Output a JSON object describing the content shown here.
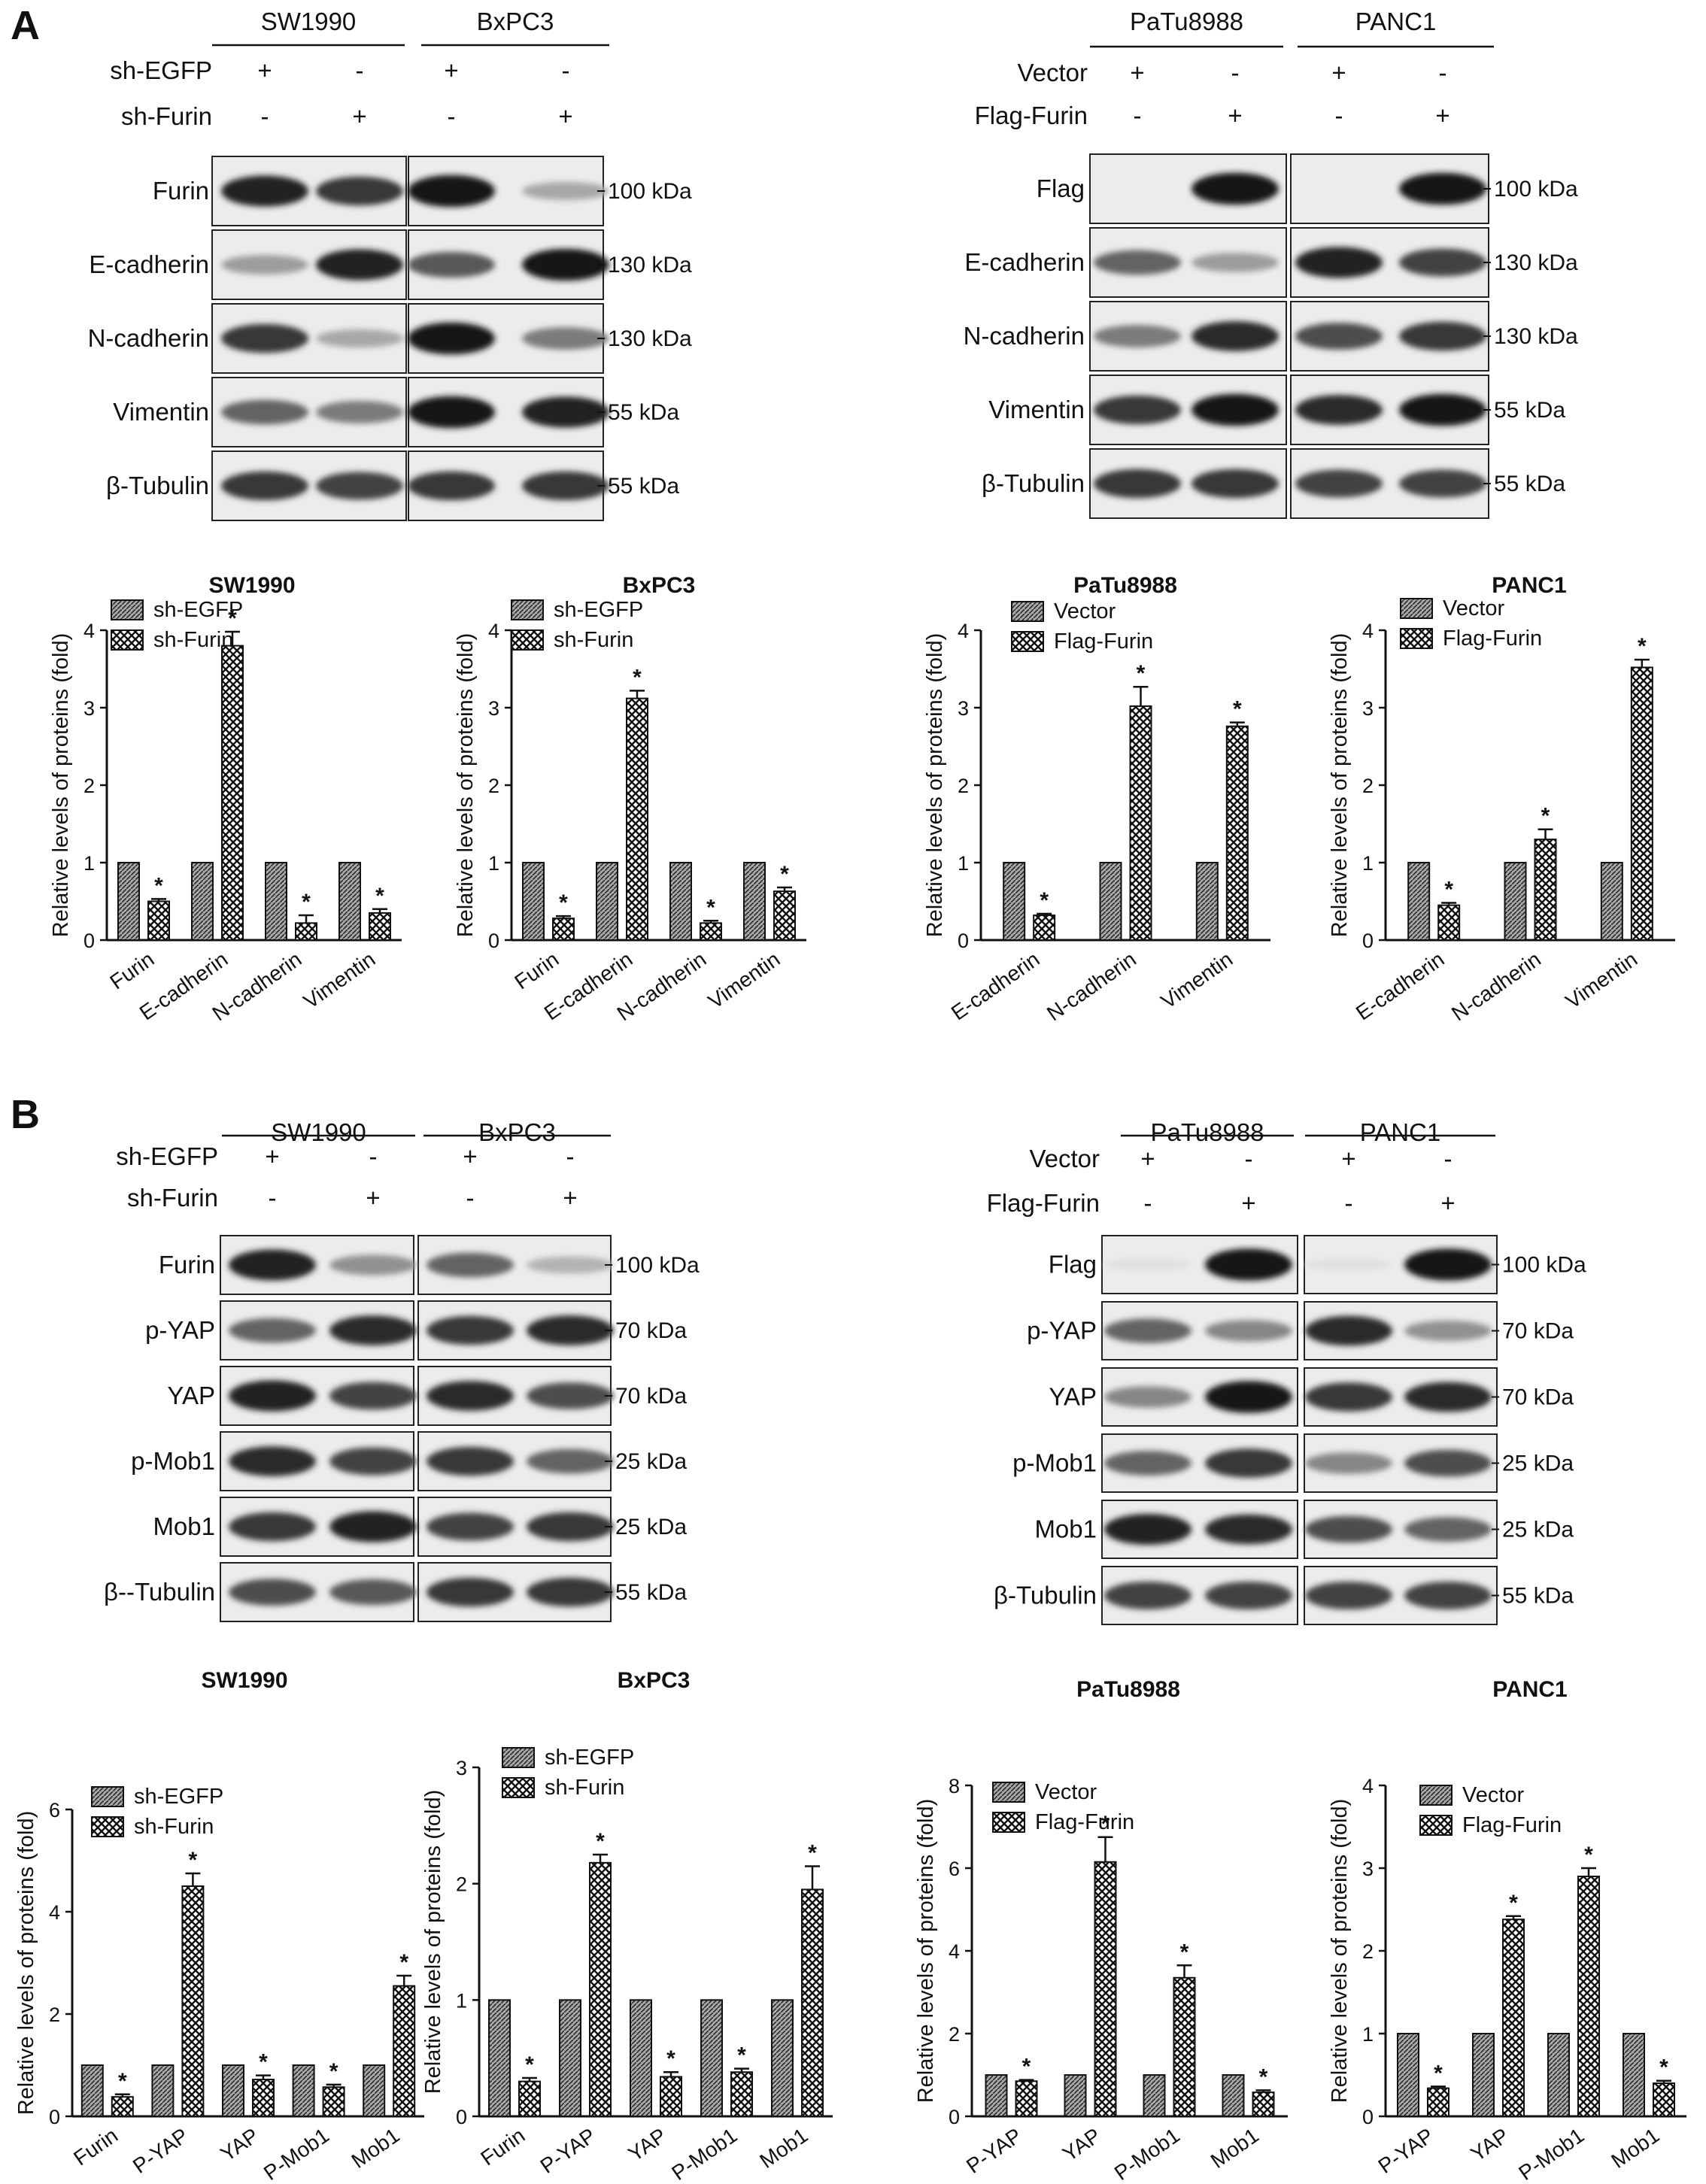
{
  "panel_labels": [
    "A",
    "B"
  ],
  "colors": {
    "ink": "#111111",
    "bar_a_fill": "#8c8c8c",
    "bar_b_fill": "#ffffff",
    "blot_bg": "#ececec"
  },
  "blots": {
    "A_left": {
      "cell_lines": [
        "SW1990",
        "BxPC3"
      ],
      "conditions": [
        {
          "label": "sh-EGFP",
          "signs": [
            "+",
            "-",
            "+",
            "-"
          ]
        },
        {
          "label": "sh-Furin",
          "signs": [
            "-",
            "+",
            "-",
            "+"
          ]
        }
      ],
      "rows": [
        {
          "label": "Furin",
          "marker": "100 kDa",
          "intensity": [
            0.9,
            0.8,
            0.95,
            0.3
          ]
        },
        {
          "label": "E-cadherin",
          "marker": "130 kDa",
          "intensity": [
            0.35,
            0.9,
            0.65,
            0.95
          ]
        },
        {
          "label": "N-cadherin",
          "marker": "130 kDa",
          "intensity": [
            0.8,
            0.3,
            0.95,
            0.5
          ]
        },
        {
          "label": "Vimentin",
          "marker": "55 kDa",
          "intensity": [
            0.6,
            0.5,
            0.95,
            0.9
          ]
        },
        {
          "label": "β-Tubulin",
          "marker": "55 kDa",
          "intensity": [
            0.8,
            0.75,
            0.8,
            0.8
          ]
        }
      ]
    },
    "A_right": {
      "cell_lines": [
        "PaTu8988",
        "PANC1"
      ],
      "conditions": [
        {
          "label": "Vector",
          "signs": [
            "+",
            "-",
            "+",
            "-"
          ]
        },
        {
          "label": "Flag-Furin",
          "signs": [
            "-",
            "+",
            "-",
            "+"
          ]
        }
      ],
      "rows": [
        {
          "label": "Flag",
          "marker": "100 kDa",
          "intensity": [
            0.0,
            0.95,
            0.0,
            0.95
          ]
        },
        {
          "label": "E-cadherin",
          "marker": "130 kDa",
          "intensity": [
            0.6,
            0.35,
            0.9,
            0.75
          ]
        },
        {
          "label": "N-cadherin",
          "marker": "130 kDa",
          "intensity": [
            0.5,
            0.85,
            0.7,
            0.8
          ]
        },
        {
          "label": "Vimentin",
          "marker": "55 kDa",
          "intensity": [
            0.8,
            0.95,
            0.85,
            0.95
          ]
        },
        {
          "label": "β-Tubulin",
          "marker": "55 kDa",
          "intensity": [
            0.8,
            0.8,
            0.75,
            0.75
          ]
        }
      ]
    },
    "B_left": {
      "cell_lines": [
        "SW1990",
        "BxPC3"
      ],
      "conditions": [
        {
          "label": "sh-EGFP",
          "signs": [
            "+",
            "-",
            "+",
            "-"
          ]
        },
        {
          "label": "sh-Furin",
          "signs": [
            "-",
            "+",
            "-",
            "+"
          ]
        }
      ],
      "rows": [
        {
          "label": "Furin",
          "marker": "100 kDa",
          "intensity": [
            0.9,
            0.4,
            0.6,
            0.25
          ]
        },
        {
          "label": "p-YAP",
          "marker": "70 kDa",
          "intensity": [
            0.6,
            0.85,
            0.8,
            0.85
          ]
        },
        {
          "label": "YAP",
          "marker": "70 kDa",
          "intensity": [
            0.9,
            0.75,
            0.85,
            0.7
          ]
        },
        {
          "label": "p-Mob1",
          "marker": "25 kDa",
          "intensity": [
            0.85,
            0.75,
            0.8,
            0.6
          ]
        },
        {
          "label": "Mob1",
          "marker": "25 kDa",
          "intensity": [
            0.8,
            0.9,
            0.75,
            0.8
          ]
        },
        {
          "label": "β--Tubulin",
          "marker": "55 kDa",
          "intensity": [
            0.7,
            0.65,
            0.8,
            0.8
          ]
        }
      ]
    },
    "B_right": {
      "cell_lines": [
        "PaTu8988",
        "PANC1"
      ],
      "conditions": [
        {
          "label": "Vector",
          "signs": [
            "+",
            "-",
            "+",
            "-"
          ]
        },
        {
          "label": "Flag-Furin",
          "signs": [
            "-",
            "+",
            "-",
            "+"
          ]
        }
      ],
      "rows": [
        {
          "label": "Flag",
          "marker": "100 kDa",
          "intensity": [
            0.05,
            0.95,
            0.05,
            0.95
          ]
        },
        {
          "label": "p-YAP",
          "marker": "70 kDa",
          "intensity": [
            0.6,
            0.45,
            0.85,
            0.4
          ]
        },
        {
          "label": "YAP",
          "marker": "70 kDa",
          "intensity": [
            0.45,
            0.95,
            0.8,
            0.85
          ]
        },
        {
          "label": "p-Mob1",
          "marker": "25 kDa",
          "intensity": [
            0.6,
            0.8,
            0.45,
            0.7
          ]
        },
        {
          "label": "Mob1",
          "marker": "25 kDa",
          "intensity": [
            0.9,
            0.85,
            0.7,
            0.6
          ]
        },
        {
          "label": "β-Tubulin",
          "marker": "55 kDa",
          "intensity": [
            0.75,
            0.75,
            0.75,
            0.75
          ]
        }
      ]
    }
  },
  "chart_data": [
    {
      "type": "bar",
      "panel": "A",
      "title": "SW1990",
      "ylabel": "Relative levels of proteins (fold)",
      "ylim": [
        0,
        4
      ],
      "yticks": [
        0,
        1,
        2,
        3,
        4
      ],
      "categories": [
        "Furin",
        "E-cadherin",
        "N-cadherin",
        "Vimentin"
      ],
      "series": [
        {
          "name": "sh-EGFP",
          "values": [
            1,
            1,
            1,
            1
          ],
          "errors": [
            0,
            0,
            0,
            0
          ]
        },
        {
          "name": "sh-Furin",
          "values": [
            0.5,
            3.8,
            0.22,
            0.35
          ],
          "errors": [
            0.03,
            0.18,
            0.1,
            0.05
          ]
        }
      ],
      "significance": [
        true,
        true,
        true,
        true
      ],
      "legend": "top-left"
    },
    {
      "type": "bar",
      "panel": "A",
      "title": "BxPC3",
      "ylabel": "Relative levels of proteins (fold)",
      "ylim": [
        0,
        4
      ],
      "yticks": [
        0,
        1,
        2,
        3,
        4
      ],
      "categories": [
        "Furin",
        "E-cadherin",
        "N-cadherin",
        "Vimentin"
      ],
      "series": [
        {
          "name": "sh-EGFP",
          "values": [
            1,
            1,
            1,
            1
          ],
          "errors": [
            0,
            0,
            0,
            0
          ]
        },
        {
          "name": "sh-Furin",
          "values": [
            0.28,
            3.12,
            0.22,
            0.63
          ],
          "errors": [
            0.03,
            0.1,
            0.03,
            0.05
          ]
        }
      ],
      "significance": [
        true,
        true,
        true,
        true
      ],
      "legend": "top-left"
    },
    {
      "type": "bar",
      "panel": "A",
      "title": "PaTu8988",
      "ylabel": "Relative levels of proteins (fold)",
      "ylim": [
        0,
        4
      ],
      "yticks": [
        0,
        1,
        2,
        3,
        4
      ],
      "categories": [
        "E-cadherin",
        "N-cadherin",
        "Vimentin"
      ],
      "series": [
        {
          "name": "Vector",
          "values": [
            1,
            1,
            1
          ],
          "errors": [
            0,
            0,
            0
          ]
        },
        {
          "name": "Flag-Furin",
          "values": [
            0.32,
            3.02,
            2.76
          ],
          "errors": [
            0.02,
            0.25,
            0.05
          ]
        }
      ],
      "significance": [
        true,
        true,
        true
      ],
      "legend": "top-left"
    },
    {
      "type": "bar",
      "panel": "A",
      "title": "PANC1",
      "ylabel": "Relative levels of proteins (fold)",
      "ylim": [
        0,
        4
      ],
      "yticks": [
        0,
        1,
        2,
        3,
        4
      ],
      "categories": [
        "E-cadherin",
        "N-cadherin",
        "Vimentin"
      ],
      "series": [
        {
          "name": "Vector",
          "values": [
            1,
            1,
            1
          ],
          "errors": [
            0,
            0,
            0
          ]
        },
        {
          "name": "Flag-Furin",
          "values": [
            0.45,
            1.3,
            3.52
          ],
          "errors": [
            0.03,
            0.13,
            0.1
          ]
        }
      ],
      "significance": [
        true,
        true,
        true
      ],
      "legend": "top-left"
    },
    {
      "type": "bar",
      "panel": "B",
      "title": "SW1990",
      "ylabel": "Relative levels of proteins (fold)",
      "ylim": [
        0,
        6
      ],
      "yticks": [
        0,
        2,
        4,
        6
      ],
      "categories": [
        "Furin",
        "P-YAP",
        "YAP",
        "P-Mob1",
        "Mob1"
      ],
      "series": [
        {
          "name": "sh-EGFP",
          "values": [
            1,
            1,
            1,
            1,
            1
          ],
          "errors": [
            0,
            0,
            0,
            0,
            0
          ]
        },
        {
          "name": "sh-Furin",
          "values": [
            0.38,
            4.5,
            0.72,
            0.57,
            2.55
          ],
          "errors": [
            0.05,
            0.25,
            0.08,
            0.05,
            0.2
          ]
        }
      ],
      "significance": [
        true,
        true,
        true,
        true,
        true
      ],
      "legend": "top-left"
    },
    {
      "type": "bar",
      "panel": "B",
      "title": "BxPC3",
      "ylabel": "Relative levels of proteins (fold)",
      "ylim": [
        0,
        3
      ],
      "yticks": [
        0,
        1,
        2,
        3
      ],
      "categories": [
        "Furin",
        "P-YAP",
        "YAP",
        "P-Mob1",
        "Mob1"
      ],
      "series": [
        {
          "name": "sh-EGFP",
          "values": [
            1,
            1,
            1,
            1,
            1
          ],
          "errors": [
            0,
            0,
            0,
            0,
            0
          ]
        },
        {
          "name": "sh-Furin",
          "values": [
            0.3,
            2.18,
            0.34,
            0.38,
            1.95
          ],
          "errors": [
            0.03,
            0.07,
            0.04,
            0.03,
            0.2
          ]
        }
      ],
      "significance": [
        true,
        true,
        true,
        true,
        true
      ],
      "legend": "top-left"
    },
    {
      "type": "bar",
      "panel": "B",
      "title": "PaTu8988",
      "ylabel": "Relative levels of proteins (fold)",
      "ylim": [
        0,
        8
      ],
      "yticks": [
        0,
        2,
        4,
        6,
        8
      ],
      "categories": [
        "P-YAP",
        "YAP",
        "P-Mob1",
        "Mob1"
      ],
      "series": [
        {
          "name": "Vector",
          "values": [
            1,
            1,
            1,
            1
          ],
          "errors": [
            0,
            0,
            0,
            0
          ]
        },
        {
          "name": "Flag-Furin",
          "values": [
            0.85,
            6.15,
            3.35,
            0.58
          ],
          "errors": [
            0.03,
            0.6,
            0.3,
            0.05
          ]
        }
      ],
      "significance": [
        true,
        true,
        true,
        true
      ],
      "legend": "top-left"
    },
    {
      "type": "bar",
      "panel": "B",
      "title": "PANC1",
      "ylabel": "Relative levels of proteins (fold)",
      "ylim": [
        0,
        4
      ],
      "yticks": [
        0,
        1,
        2,
        3,
        4
      ],
      "categories": [
        "P-YAP",
        "YAP",
        "P-Mob1",
        "Mob1"
      ],
      "series": [
        {
          "name": "Vector",
          "values": [
            1,
            1,
            1,
            1
          ],
          "errors": [
            0,
            0,
            0,
            0
          ]
        },
        {
          "name": "Flag-Furin",
          "values": [
            0.34,
            2.38,
            2.9,
            0.4
          ],
          "errors": [
            0.02,
            0.04,
            0.1,
            0.03
          ]
        }
      ],
      "significance": [
        true,
        true,
        true,
        true
      ],
      "legend": "top-left"
    }
  ]
}
